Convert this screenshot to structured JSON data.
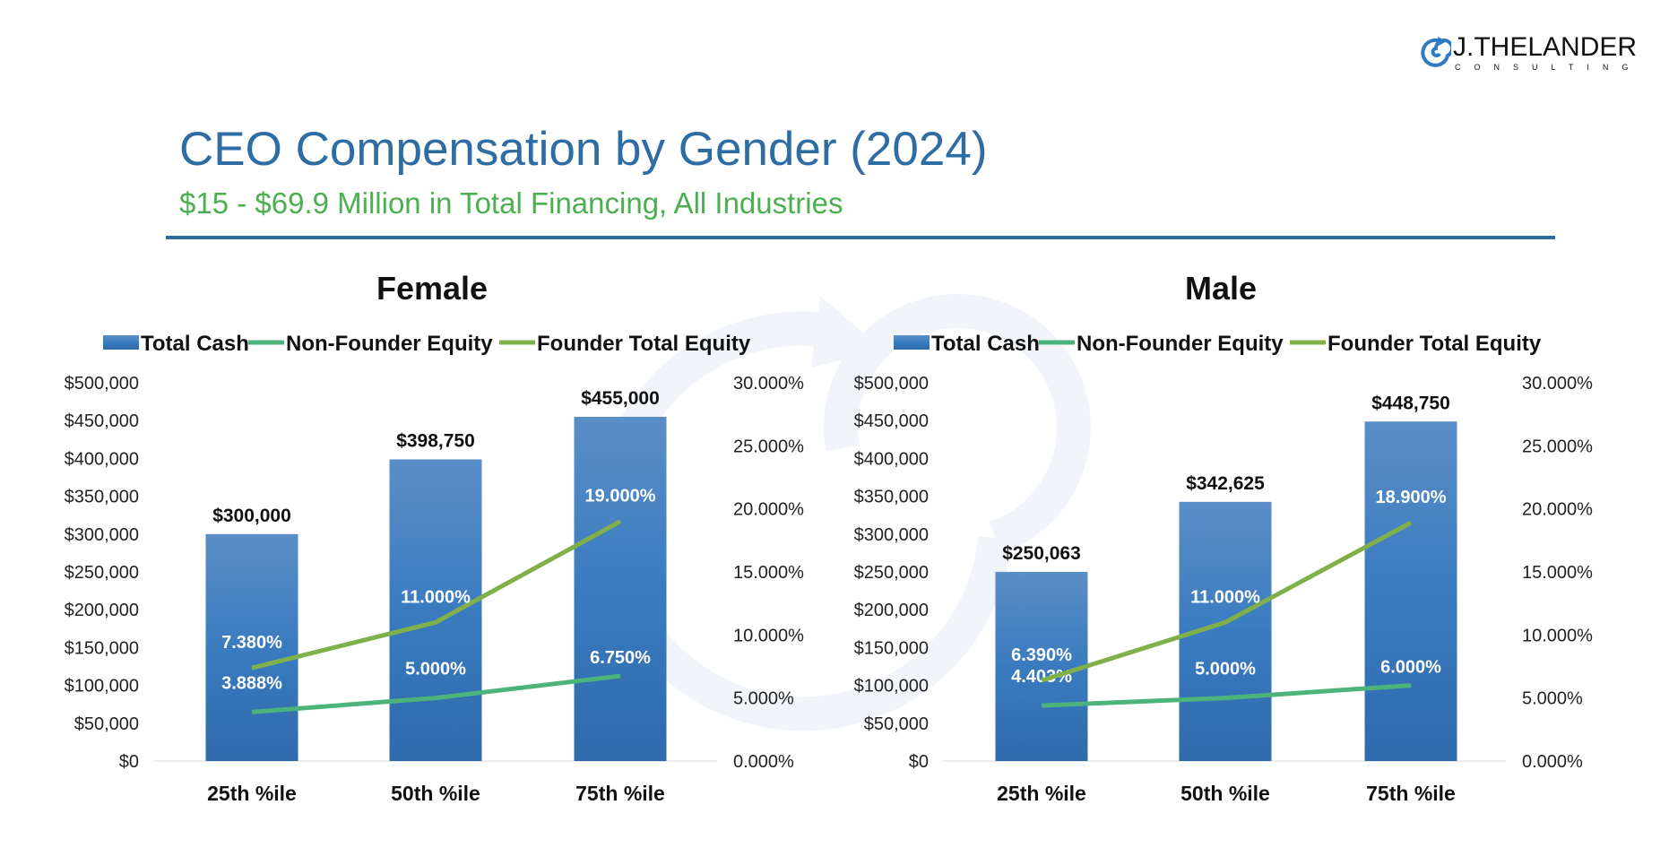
{
  "logo": {
    "name": "J.THELANDER",
    "sub": "CONSULTING"
  },
  "title": "CEO Compensation by Gender (2024)",
  "subtitle": "$15 - $69.9 Million in Total Financing, All Industries",
  "colors": {
    "title": "#2e6da4",
    "subtitle": "#4caf50",
    "bar": "#3a78bd",
    "non_founder": "#4cb47a",
    "founder": "#7fb04a"
  },
  "chart_data": [
    {
      "type": "bar+line",
      "title": "Female",
      "categories": [
        "25th %ile",
        "50th %ile",
        "75th %ile"
      ],
      "legend": [
        "Total Cash",
        "Non-Founder Equity",
        "Founder Total Equity"
      ],
      "legend_position": "top",
      "y_left": {
        "range": [
          0,
          500000
        ],
        "ticks": [
          "$0",
          "$50,000",
          "$100,000",
          "$150,000",
          "$200,000",
          "$250,000",
          "$300,000",
          "$350,000",
          "$400,000",
          "$450,000",
          "$500,000"
        ]
      },
      "y_right": {
        "range": [
          0,
          30
        ],
        "ticks": [
          "0.000%",
          "5.000%",
          "10.000%",
          "15.000%",
          "20.000%",
          "25.000%",
          "30.000%"
        ]
      },
      "series": [
        {
          "name": "Total Cash",
          "kind": "bar",
          "values": [
            300000,
            398750,
            455000
          ],
          "labels": [
            "$300,000",
            "$398,750",
            "$455,000"
          ]
        },
        {
          "name": "Non-Founder Equity",
          "kind": "line",
          "values": [
            3.888,
            5.0,
            6.75
          ],
          "labels": [
            "3.888%",
            "5.000%",
            "6.750%"
          ]
        },
        {
          "name": "Founder Total Equity",
          "kind": "line",
          "values": [
            7.38,
            11.0,
            19.0
          ],
          "labels": [
            "7.380%",
            "11.000%",
            "19.000%"
          ]
        }
      ]
    },
    {
      "type": "bar+line",
      "title": "Male",
      "categories": [
        "25th %ile",
        "50th %ile",
        "75th %ile"
      ],
      "legend": [
        "Total Cash",
        "Non-Founder Equity",
        "Founder Total Equity"
      ],
      "legend_position": "top",
      "y_left": {
        "range": [
          0,
          500000
        ],
        "ticks": [
          "$0",
          "$50,000",
          "$100,000",
          "$150,000",
          "$200,000",
          "$250,000",
          "$300,000",
          "$350,000",
          "$400,000",
          "$450,000",
          "$500,000"
        ]
      },
      "y_right": {
        "range": [
          0,
          30
        ],
        "ticks": [
          "0.000%",
          "5.000%",
          "10.000%",
          "15.000%",
          "20.000%",
          "25.000%",
          "30.000%"
        ]
      },
      "series": [
        {
          "name": "Total Cash",
          "kind": "bar",
          "values": [
            250063,
            342625,
            448750
          ],
          "labels": [
            "$250,063",
            "$342,625",
            "$448,750"
          ]
        },
        {
          "name": "Non-Founder Equity",
          "kind": "line",
          "values": [
            4.403,
            5.0,
            6.0
          ],
          "labels": [
            "4.403%",
            "5.000%",
            "6.000%"
          ]
        },
        {
          "name": "Founder Total Equity",
          "kind": "line",
          "values": [
            6.39,
            11.0,
            18.9
          ],
          "labels": [
            "6.390%",
            "11.000%",
            "18.900%"
          ]
        }
      ]
    }
  ]
}
